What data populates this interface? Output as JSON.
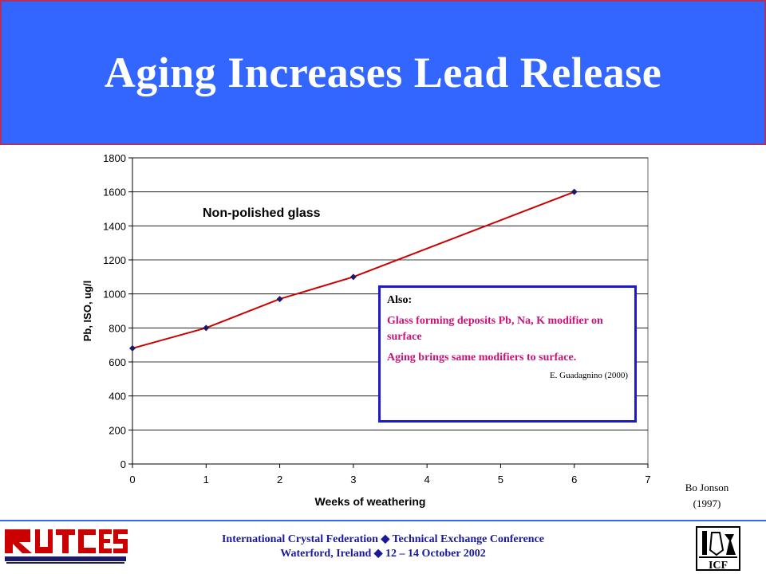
{
  "slide": {
    "title": "Aging Increases Lead Release",
    "credit_line1": "Bo Jonson",
    "credit_line2": "(1997)",
    "footer_line1": "International Crystal Federation  ◆  Technical Exchange Conference",
    "footer_line2": "Waterford, Ireland  ◆  12 – 14 October 2002",
    "logo_right_text": "ICF",
    "colors": {
      "title_bg": "#3366ff",
      "title_border": "#b03060",
      "series": "#cc0000",
      "marker": "#1a1a66",
      "box_border": "#1a1acc",
      "box_text": "#cc1177"
    }
  },
  "also_box": {
    "heading": "Also:",
    "line1": "Glass forming deposits Pb, Na, K modifier on surface",
    "line2": "Aging brings same modifiers to surface.",
    "citation": "E. Guadagnino (2000)"
  },
  "chart_data": {
    "type": "line",
    "title": "",
    "xlabel": "Weeks of weathering",
    "ylabel": "Pb, ISO, ug/l",
    "xlim": [
      0,
      7
    ],
    "ylim": [
      0,
      1800
    ],
    "x_ticks": [
      0,
      1,
      2,
      3,
      4,
      5,
      6,
      7
    ],
    "y_ticks": [
      0,
      200,
      400,
      600,
      800,
      1000,
      1200,
      1400,
      1600,
      1800
    ],
    "grid": "horizontal",
    "annotation": "Non-polished glass",
    "series": [
      {
        "x": [
          0,
          1,
          2,
          3,
          6
        ],
        "values": [
          680,
          800,
          970,
          1100,
          1600
        ]
      }
    ]
  }
}
